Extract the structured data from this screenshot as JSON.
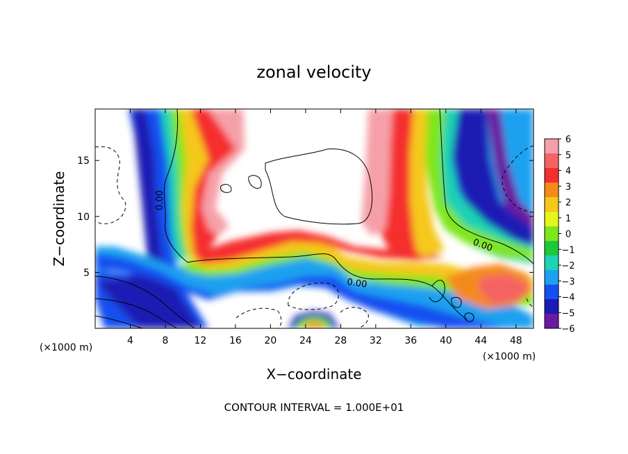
{
  "chart_data": {
    "type": "heatmap",
    "title": "zonal velocity",
    "xlabel": "X−coordinate",
    "ylabel": "Z−coordinate",
    "x_unit_left": "(×1000 m)",
    "x_unit_right": "(×1000 m)",
    "xlim": [
      0,
      50
    ],
    "ylim": [
      0,
      19.6
    ],
    "x_ticks": [
      4,
      8,
      12,
      16,
      20,
      24,
      28,
      32,
      36,
      40,
      44,
      48
    ],
    "y_ticks": [
      5,
      10,
      15
    ],
    "colorbar": {
      "levels": [
        6,
        5,
        4,
        3,
        2,
        1,
        0,
        -1,
        -2,
        -3,
        -4,
        -5,
        -6
      ],
      "labels": [
        "6",
        "5",
        "4",
        "3",
        "2",
        "1",
        "0",
        "−1",
        "−2",
        "−3",
        "−4",
        "−5",
        "−6"
      ],
      "colors": [
        "#f5a0a8",
        "#f46464",
        "#f52e2e",
        "#f58a1a",
        "#f5c81a",
        "#e6f51a",
        "#7ee61a",
        "#1ec83c",
        "#1ed2b4",
        "#1ea0f0",
        "#1450f0",
        "#1a1ab4",
        "#6a1aa0"
      ]
    },
    "contour_labels": [
      "0.00",
      "0.00",
      "0.00"
    ],
    "footer": "CONTOUR INTERVAL = 1.000E+01"
  }
}
